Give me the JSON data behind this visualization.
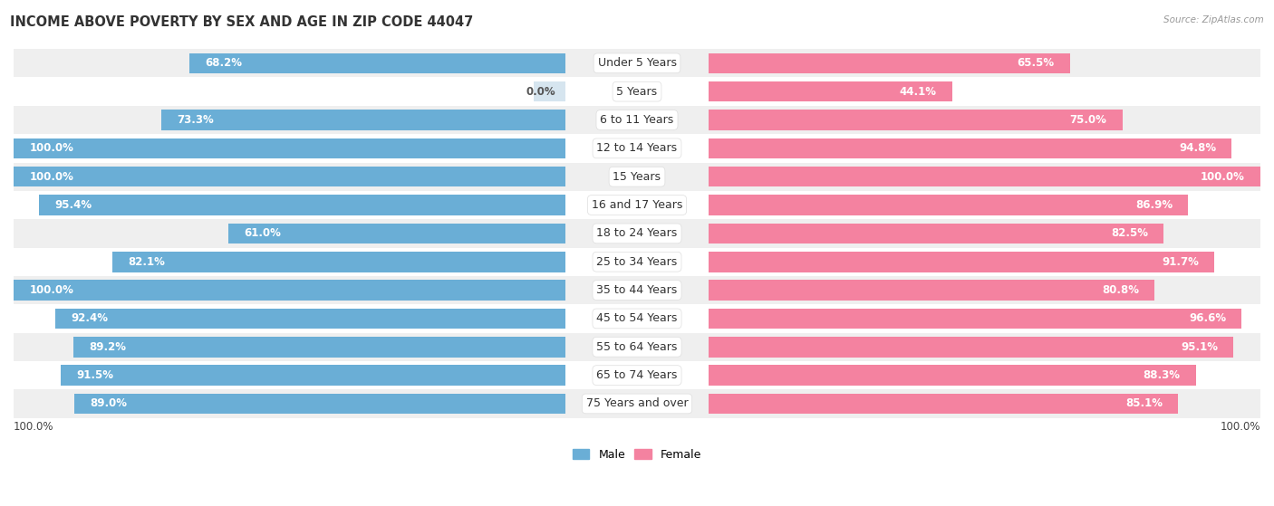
{
  "title": "INCOME ABOVE POVERTY BY SEX AND AGE IN ZIP CODE 44047",
  "source": "Source: ZipAtlas.com",
  "categories": [
    "Under 5 Years",
    "5 Years",
    "6 to 11 Years",
    "12 to 14 Years",
    "15 Years",
    "16 and 17 Years",
    "18 to 24 Years",
    "25 to 34 Years",
    "35 to 44 Years",
    "45 to 54 Years",
    "55 to 64 Years",
    "65 to 74 Years",
    "75 Years and over"
  ],
  "male_values": [
    68.2,
    0.0,
    73.3,
    100.0,
    100.0,
    95.4,
    61.0,
    82.1,
    100.0,
    92.4,
    89.2,
    91.5,
    89.0
  ],
  "female_values": [
    65.5,
    44.1,
    75.0,
    94.8,
    100.0,
    86.9,
    82.5,
    91.7,
    80.8,
    96.6,
    95.1,
    88.3,
    85.1
  ],
  "male_color": "#6aaed6",
  "female_color": "#f482a0",
  "male_color_light": "#aecde1",
  "female_color_light": "#f7b8ca",
  "bg_odd": "#efefef",
  "bg_even": "#ffffff",
  "label_bg": "#ffffff",
  "max_val": 100.0,
  "legend_male": "Male",
  "legend_female": "Female",
  "title_fontsize": 10.5,
  "cat_fontsize": 9.0,
  "value_fontsize": 8.5
}
